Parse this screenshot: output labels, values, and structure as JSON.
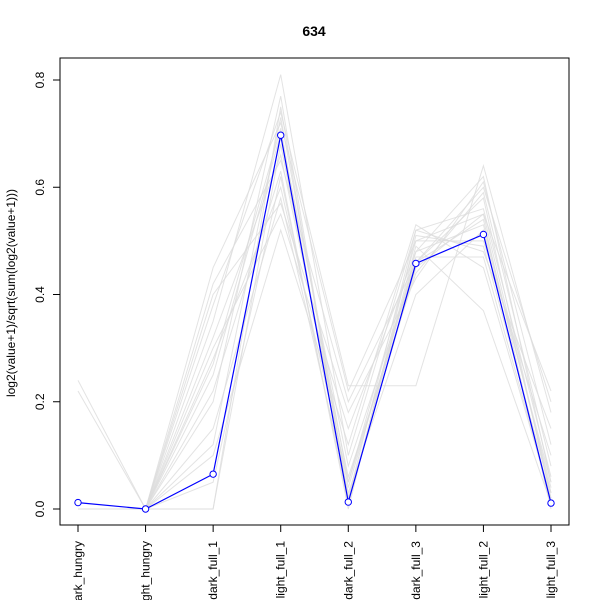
{
  "chart_data": {
    "type": "line",
    "title": "634",
    "xlabel": "",
    "ylabel": "log2(value+1)/sqrt(sum(log2(value+1)))",
    "categories": [
      "dark_hungry",
      "light_hungry",
      "dark_full_1",
      "light_full_1",
      "dark_full_2",
      "dark_full_3",
      "light_full_2",
      "light_full_3"
    ],
    "ylim": [
      0,
      0.8
    ],
    "yticks": [
      0.0,
      0.2,
      0.4,
      0.6,
      0.8
    ],
    "ytick_labels": [
      "0.0",
      "0.2",
      "0.4",
      "0.6",
      "0.8"
    ],
    "grid": false,
    "highlight_series": {
      "color": "#0000ff",
      "values": [
        0.012,
        0.0,
        0.065,
        0.697,
        0.013,
        0.458,
        0.512,
        0.011
      ]
    },
    "background_series": {
      "color": "#dcdcdc",
      "lines": [
        [
          0.24,
          0.0,
          0.45,
          0.72,
          0.22,
          0.5,
          0.55,
          0.22
        ],
        [
          0.22,
          0.0,
          0.42,
          0.65,
          0.2,
          0.46,
          0.6,
          0.2
        ],
        [
          0.0,
          0.0,
          0.38,
          0.74,
          0.23,
          0.23,
          0.64,
          0.18
        ],
        [
          0.0,
          0.0,
          0.35,
          0.81,
          0.1,
          0.52,
          0.48,
          0.15
        ],
        [
          0.0,
          0.0,
          0.3,
          0.55,
          0.15,
          0.48,
          0.62,
          0.05
        ],
        [
          0.0,
          0.0,
          0.28,
          0.6,
          0.05,
          0.5,
          0.5,
          0.1
        ],
        [
          0.0,
          0.0,
          0.25,
          0.7,
          0.08,
          0.46,
          0.58,
          0.02
        ],
        [
          0.0,
          0.0,
          0.2,
          0.77,
          0.02,
          0.45,
          0.55,
          0.03
        ],
        [
          0.0,
          0.0,
          0.15,
          0.58,
          0.03,
          0.4,
          0.52,
          0.05
        ],
        [
          0.0,
          0.0,
          0.1,
          0.52,
          0.12,
          0.53,
          0.45,
          0.02
        ],
        [
          0.0,
          0.0,
          0.05,
          0.62,
          0.01,
          0.49,
          0.37,
          0.01
        ],
        [
          0.0,
          0.0,
          0.0,
          0.68,
          0.04,
          0.47,
          0.47,
          0.02
        ],
        [
          0.0,
          0.0,
          0.0,
          0.75,
          0.02,
          0.52,
          0.56,
          0.06
        ],
        [
          0.0,
          0.0,
          0.32,
          0.66,
          0.06,
          0.44,
          0.59,
          0.08
        ],
        [
          0.0,
          0.0,
          0.27,
          0.71,
          0.01,
          0.48,
          0.53,
          0.04
        ],
        [
          0.0,
          0.0,
          0.4,
          0.57,
          0.18,
          0.43,
          0.61,
          0.12
        ],
        [
          0.0,
          0.0,
          0.22,
          0.63,
          0.0,
          0.51,
          0.49,
          0.03
        ],
        [
          0.0,
          0.0,
          0.12,
          0.73,
          0.05,
          0.46,
          0.54,
          0.0
        ]
      ]
    }
  }
}
